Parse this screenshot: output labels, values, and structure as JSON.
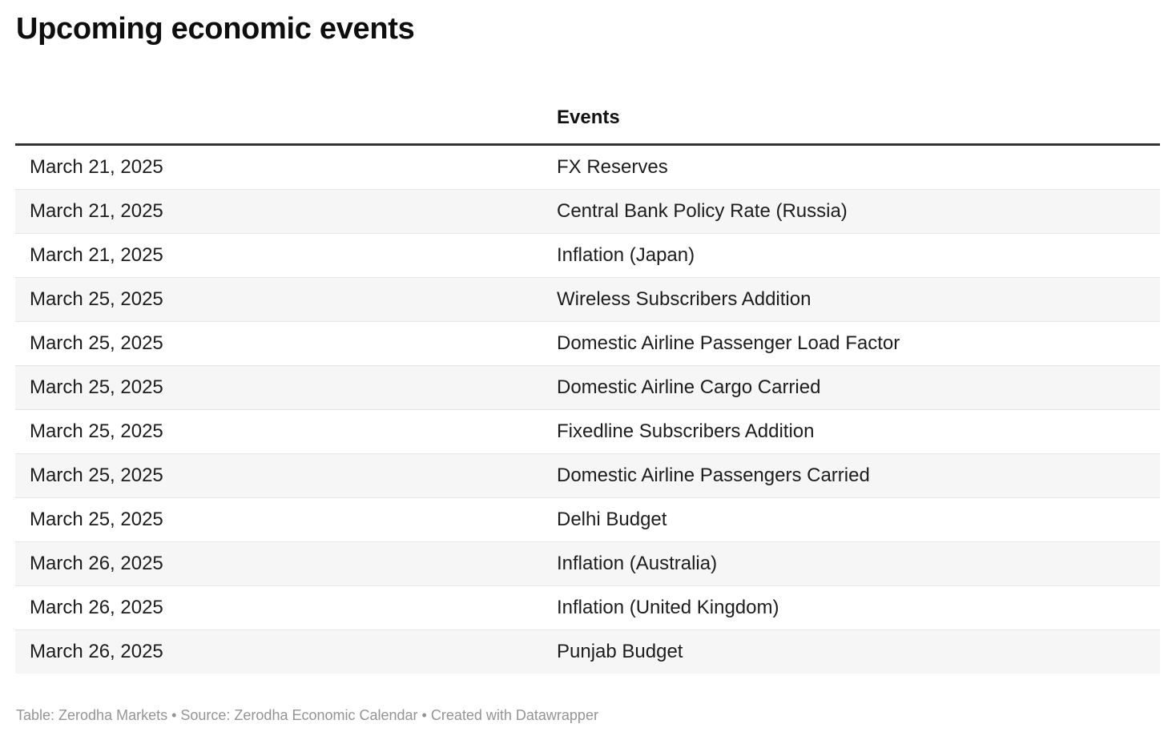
{
  "page": {
    "title": "Upcoming economic events",
    "footer": "Table: Zerodha Markets • Source: Zerodha Economic Calendar • Created with Datawrapper"
  },
  "table": {
    "columns": [
      {
        "label": ""
      },
      {
        "label": "Events"
      }
    ],
    "rows": [
      {
        "date": "March 21, 2025",
        "event": "FX Reserves"
      },
      {
        "date": "March 21, 2025",
        "event": "Central Bank Policy Rate (Russia)"
      },
      {
        "date": "March 21, 2025",
        "event": "Inflation (Japan)"
      },
      {
        "date": "March 25, 2025",
        "event": "Wireless Subscribers Addition"
      },
      {
        "date": "March 25, 2025",
        "event": "Domestic Airline Passenger Load Factor"
      },
      {
        "date": "March 25, 2025",
        "event": "Domestic Airline Cargo Carried"
      },
      {
        "date": "March 25, 2025",
        "event": "Fixedline Subscribers Addition"
      },
      {
        "date": "March 25, 2025",
        "event": "Domestic Airline Passengers Carried"
      },
      {
        "date": "March 25, 2025",
        "event": "Delhi Budget"
      },
      {
        "date": "March 26, 2025",
        "event": "Inflation (Australia)"
      },
      {
        "date": "March 26, 2025",
        "event": "Inflation (United Kingdom)"
      },
      {
        "date": "March 26, 2025",
        "event": "Punjab Budget"
      }
    ]
  },
  "colors": {
    "title_text": "#0e0e0e",
    "body_text": "#1d1d1d",
    "header_rule": "#333333",
    "stripe_row": "#f6f6f6",
    "row_divider": "#e5e5e5",
    "footer_text": "#949494"
  },
  "chart_data": {
    "type": "table",
    "title": "Upcoming economic events",
    "columns": [
      "",
      "Events"
    ],
    "rows": [
      [
        "March 21, 2025",
        "FX Reserves"
      ],
      [
        "March 21, 2025",
        "Central Bank Policy Rate (Russia)"
      ],
      [
        "March 21, 2025",
        "Inflation (Japan)"
      ],
      [
        "March 25, 2025",
        "Wireless Subscribers Addition"
      ],
      [
        "March 25, 2025",
        "Domestic Airline Passenger Load Factor"
      ],
      [
        "March 25, 2025",
        "Domestic Airline Cargo Carried"
      ],
      [
        "March 25, 2025",
        "Fixedline Subscribers Addition"
      ],
      [
        "March 25, 2025",
        "Domestic Airline Passengers Carried"
      ],
      [
        "March 25, 2025",
        "Delhi Budget"
      ],
      [
        "March 26, 2025",
        "Inflation (Australia)"
      ],
      [
        "March 26, 2025",
        "Inflation (United Kingdom)"
      ],
      [
        "March 26, 2025",
        "Punjab Budget"
      ]
    ],
    "footer": "Table: Zerodha Markets • Source: Zerodha Economic Calendar • Created with Datawrapper",
    "layout_hints": {
      "zebra_striping": true,
      "header_rule": "3px dark",
      "first_column_header_empty": true
    }
  }
}
